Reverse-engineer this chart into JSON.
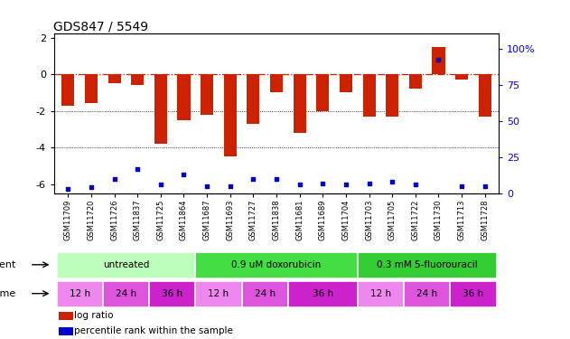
{
  "title": "GDS847 / 5549",
  "samples": [
    "GSM11709",
    "GSM11720",
    "GSM11726",
    "GSM11837",
    "GSM11725",
    "GSM11864",
    "GSM11687",
    "GSM11693",
    "GSM11727",
    "GSM11838",
    "GSM11681",
    "GSM11689",
    "GSM11704",
    "GSM11703",
    "GSM11705",
    "GSM11722",
    "GSM11730",
    "GSM11713",
    "GSM11728"
  ],
  "log_ratio": [
    -1.7,
    -1.6,
    -0.5,
    -0.6,
    -3.8,
    -2.5,
    -2.2,
    -4.5,
    -2.7,
    -1.0,
    -3.2,
    -2.0,
    -1.0,
    -2.3,
    -2.3,
    -0.8,
    1.5,
    -0.3,
    -2.3
  ],
  "pct_rank": [
    3,
    4,
    10,
    17,
    6,
    13,
    5,
    5,
    10,
    10,
    6,
    7,
    6,
    7,
    8,
    6,
    92,
    5,
    5
  ],
  "ylim_left": [
    -6.5,
    2.2
  ],
  "ylim_right": [
    0,
    110
  ],
  "bar_color": "#cc2200",
  "dot_color": "#0000cc",
  "dotted_lines": [
    -2.0,
    -4.0
  ],
  "agent_groups": [
    {
      "label": "untreated",
      "start": 0,
      "end": 6,
      "color": "#bbffbb"
    },
    {
      "label": "0.9 uM doxorubicin",
      "start": 6,
      "end": 13,
      "color": "#44dd44"
    },
    {
      "label": "0.3 mM 5-fluorouracil",
      "start": 13,
      "end": 19,
      "color": "#33cc33"
    }
  ],
  "time_groups": [
    {
      "label": "12 h",
      "start": 0,
      "end": 2,
      "color": "#ee88ee"
    },
    {
      "label": "24 h",
      "start": 2,
      "end": 4,
      "color": "#dd55dd"
    },
    {
      "label": "36 h",
      "start": 4,
      "end": 6,
      "color": "#cc22cc"
    },
    {
      "label": "12 h",
      "start": 6,
      "end": 8,
      "color": "#ee88ee"
    },
    {
      "label": "24 h",
      "start": 8,
      "end": 10,
      "color": "#dd55dd"
    },
    {
      "label": "36 h",
      "start": 10,
      "end": 13,
      "color": "#cc22cc"
    },
    {
      "label": "12 h",
      "start": 13,
      "end": 15,
      "color": "#ee88ee"
    },
    {
      "label": "24 h",
      "start": 15,
      "end": 17,
      "color": "#dd55dd"
    },
    {
      "label": "36 h",
      "start": 17,
      "end": 19,
      "color": "#cc22cc"
    }
  ],
  "legend_bar_color": "#cc2200",
  "legend_dot_color": "#0000cc",
  "legend_bar_label": "log ratio",
  "legend_dot_label": "percentile rank within the sample",
  "right_yticks": [
    0,
    25,
    50,
    75,
    100
  ],
  "right_yticklabels": [
    "0",
    "25",
    "50",
    "75",
    "100%"
  ],
  "left_yticks": [
    -6,
    -4,
    -2,
    0,
    2
  ],
  "bar_width": 0.55
}
